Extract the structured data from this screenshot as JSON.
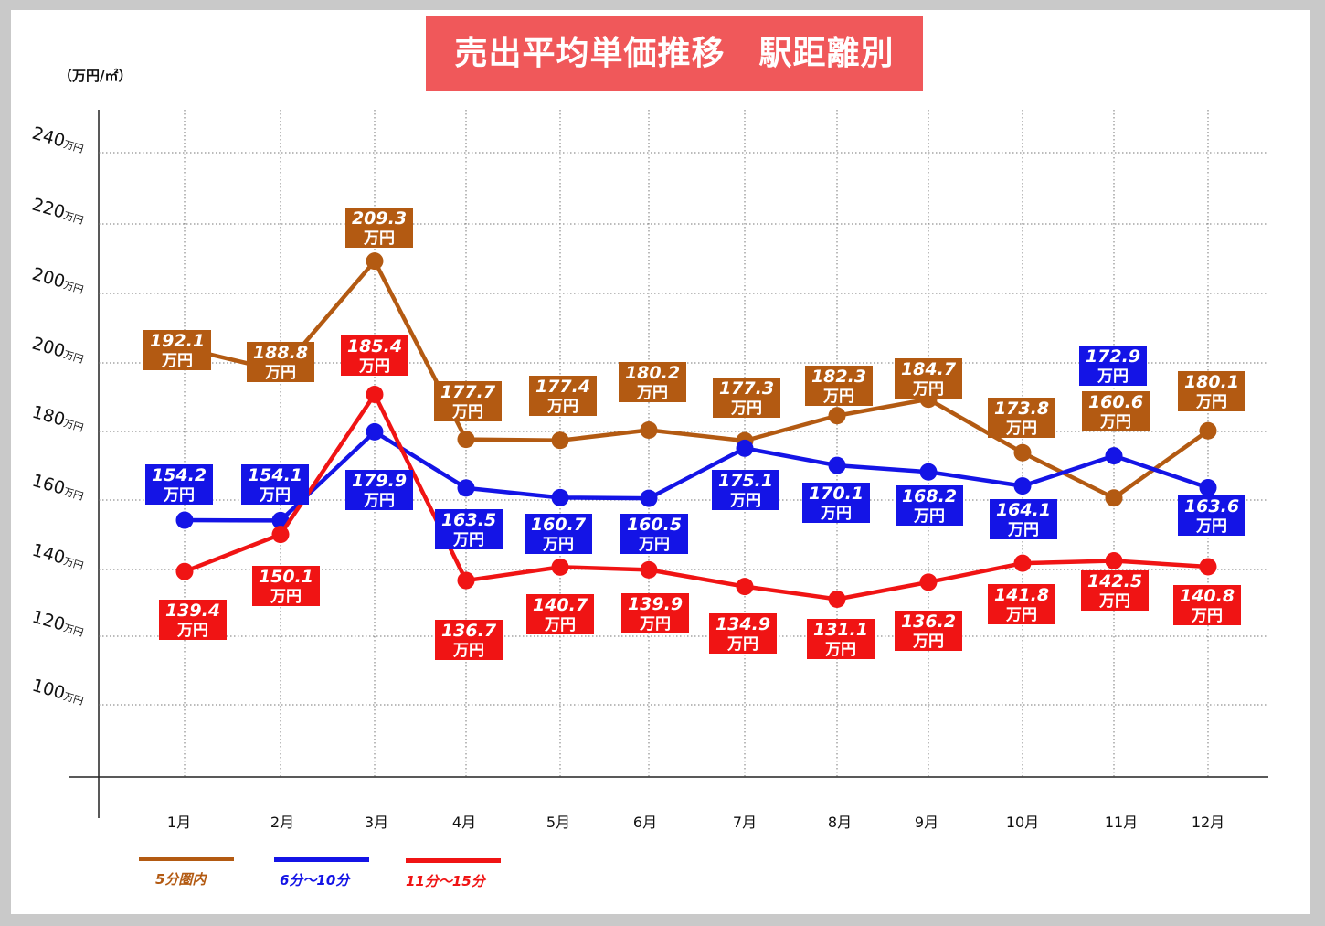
{
  "chart_data": {
    "type": "line",
    "title": "売出平均単価推移　駅距離別",
    "unit_label": "（万円/㎡）",
    "categories": [
      "1月",
      "2月",
      "3月",
      "4月",
      "5月",
      "6月",
      "7月",
      "8月",
      "9月",
      "10月",
      "11月",
      "12月"
    ],
    "y_tick_labels": [
      "100万円",
      "120万円",
      "140万円",
      "160万円",
      "180万円",
      "200万円",
      "200万円",
      "220万円",
      "240万円"
    ],
    "value_unit": "万円",
    "grid": true,
    "legend_position": "bottom-left",
    "series": [
      {
        "name": "5分圏内",
        "color": "#b35a12",
        "values": [
          192.1,
          188.8,
          209.3,
          177.7,
          177.4,
          180.2,
          177.3,
          182.3,
          184.7,
          173.8,
          160.6,
          180.1
        ]
      },
      {
        "name": "6分～10分",
        "color": "#1414e6",
        "values": [
          154.2,
          154.1,
          179.9,
          163.5,
          160.7,
          160.5,
          175.1,
          170.1,
          168.2,
          164.1,
          172.9,
          163.6
        ]
      },
      {
        "name": "11分～15分",
        "color": "#f01414",
        "values": [
          139.4,
          150.1,
          185.4,
          136.7,
          140.7,
          139.9,
          134.9,
          131.1,
          136.2,
          141.8,
          142.5,
          140.8
        ]
      }
    ]
  }
}
